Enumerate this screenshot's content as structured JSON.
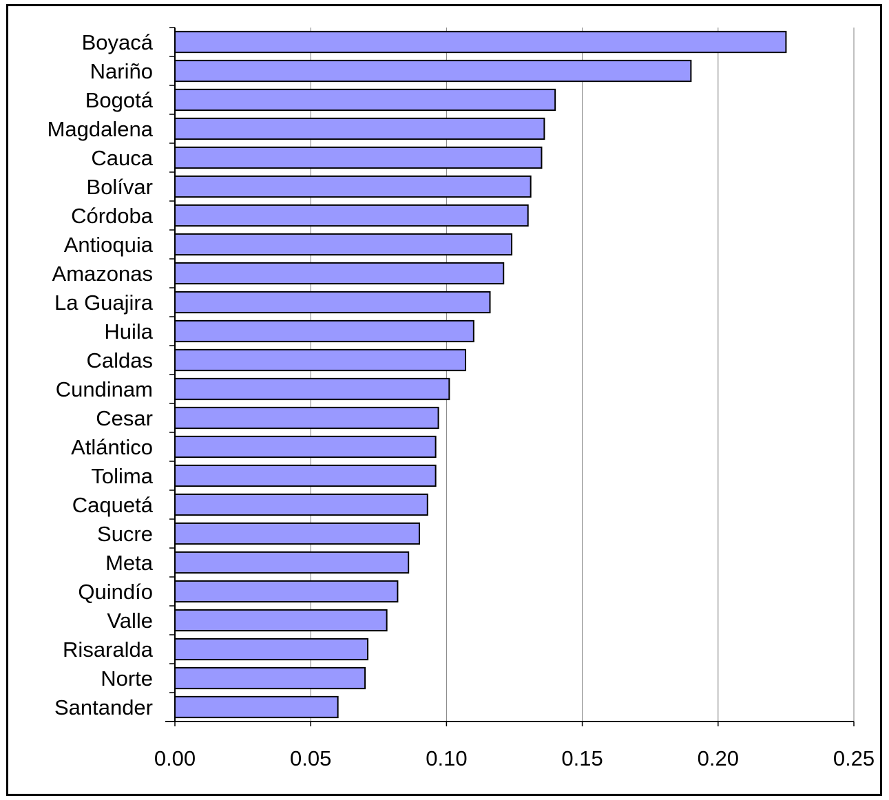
{
  "chart_data": {
    "type": "bar",
    "orientation": "horizontal",
    "title": "",
    "xlabel": "",
    "ylabel": "",
    "categories": [
      "Boyacá",
      "Nariño",
      "Bogotá",
      "Magdalena",
      "Cauca",
      "Bolívar",
      "Córdoba",
      "Antioquia",
      "Amazonas",
      "La Guajira",
      "Huila",
      "Caldas",
      "Cundinam",
      "Cesar",
      "Atlántico",
      "Tolima",
      "Caquetá",
      "Sucre",
      "Meta",
      "Quindío",
      "Valle",
      "Risaralda",
      "Norte",
      "Santander"
    ],
    "values": [
      0.225,
      0.19,
      0.14,
      0.136,
      0.135,
      0.131,
      0.13,
      0.124,
      0.121,
      0.116,
      0.11,
      0.107,
      0.101,
      0.097,
      0.096,
      0.096,
      0.093,
      0.09,
      0.086,
      0.082,
      0.078,
      0.071,
      0.07,
      0.06
    ],
    "xlim": [
      0,
      0.25
    ],
    "xticks": [
      "0.00",
      "0.05",
      "0.10",
      "0.15",
      "0.20",
      "0.25"
    ],
    "grid": true,
    "legend": "none",
    "colors": {
      "bar_fill": "#9999ff",
      "bar_stroke": "#000000",
      "grid": "#808080"
    }
  }
}
